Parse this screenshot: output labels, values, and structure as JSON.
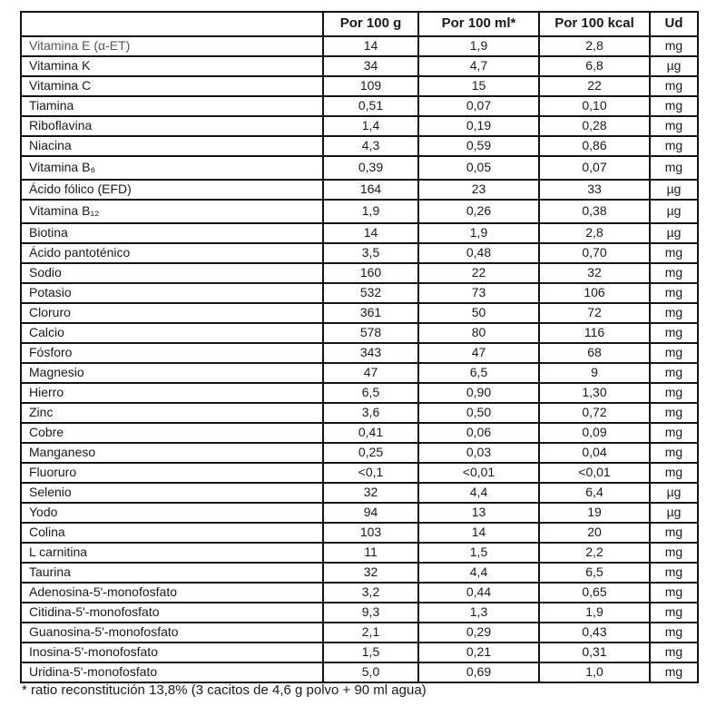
{
  "colors": {
    "background": "#ffffff",
    "text": "#1a1a1a",
    "border": "#141414",
    "faded_row_label": "#565656"
  },
  "table": {
    "columns": [
      "",
      "Por 100 g",
      "Por 100 ml*",
      "Por 100 kcal",
      "Ud"
    ],
    "rows": [
      {
        "label": "Vitamina E (α-ET)",
        "per100g": "14",
        "per100ml": "1,9",
        "per100kcal": "2,8",
        "unit": "mg"
      },
      {
        "label": "Vitamina K",
        "per100g": "34",
        "per100ml": "4,7",
        "per100kcal": "6,8",
        "unit": "µg"
      },
      {
        "label": "Vitamina C",
        "per100g": "109",
        "per100ml": "15",
        "per100kcal": "22",
        "unit": "mg"
      },
      {
        "label": "Tiamina",
        "per100g": "0,51",
        "per100ml": "0,07",
        "per100kcal": "0,10",
        "unit": "mg"
      },
      {
        "label": "Riboflavina",
        "per100g": "1,4",
        "per100ml": "0,19",
        "per100kcal": "0,28",
        "unit": "mg"
      },
      {
        "label": "Niacina",
        "per100g": "4,3",
        "per100ml": "0,59",
        "per100kcal": "0,86",
        "unit": "mg"
      },
      {
        "label": "Vitamina B₆",
        "per100g": "0,39",
        "per100ml": "0,05",
        "per100kcal": "0,07",
        "unit": "mg",
        "tall": true
      },
      {
        "label": "Ácido fólico (EFD)",
        "per100g": "164",
        "per100ml": "23",
        "per100kcal": "33",
        "unit": "µg"
      },
      {
        "label": "Vitamina B₁₂",
        "per100g": "1,9",
        "per100ml": "0,26",
        "per100kcal": "0,38",
        "unit": "µg",
        "tall": true
      },
      {
        "label": "Biotina",
        "per100g": "14",
        "per100ml": "1,9",
        "per100kcal": "2,8",
        "unit": "µg"
      },
      {
        "label": "Ácido pantoténico",
        "per100g": "3,5",
        "per100ml": "0,48",
        "per100kcal": "0,70",
        "unit": "mg"
      },
      {
        "label": "Sodio",
        "per100g": "160",
        "per100ml": "22",
        "per100kcal": "32",
        "unit": "mg"
      },
      {
        "label": "Potasio",
        "per100g": "532",
        "per100ml": "73",
        "per100kcal": "106",
        "unit": "mg"
      },
      {
        "label": "Cloruro",
        "per100g": "361",
        "per100ml": "50",
        "per100kcal": "72",
        "unit": "mg"
      },
      {
        "label": "Calcio",
        "per100g": "578",
        "per100ml": "80",
        "per100kcal": "116",
        "unit": "mg"
      },
      {
        "label": "Fósforo",
        "per100g": "343",
        "per100ml": "47",
        "per100kcal": "68",
        "unit": "mg"
      },
      {
        "label": "Magnesio",
        "per100g": "47",
        "per100ml": "6,5",
        "per100kcal": "9",
        "unit": "mg"
      },
      {
        "label": "Hierro",
        "per100g": "6,5",
        "per100ml": "0,90",
        "per100kcal": "1,30",
        "unit": "mg"
      },
      {
        "label": "Zinc",
        "per100g": "3,6",
        "per100ml": "0,50",
        "per100kcal": "0,72",
        "unit": "mg"
      },
      {
        "label": "Cobre",
        "per100g": "0,41",
        "per100ml": "0,06",
        "per100kcal": "0,09",
        "unit": "mg"
      },
      {
        "label": "Manganeso",
        "per100g": "0,25",
        "per100ml": "0,03",
        "per100kcal": "0,04",
        "unit": "mg"
      },
      {
        "label": "Fluoruro",
        "per100g": "<0,1",
        "per100ml": "<0,01",
        "per100kcal": "<0,01",
        "unit": "mg"
      },
      {
        "label": "Selenio",
        "per100g": "32",
        "per100ml": "4,4",
        "per100kcal": "6,4",
        "unit": "µg"
      },
      {
        "label": "Yodo",
        "per100g": "94",
        "per100ml": "13",
        "per100kcal": "19",
        "unit": "µg"
      },
      {
        "label": "Colina",
        "per100g": "103",
        "per100ml": "14",
        "per100kcal": "20",
        "unit": "mg"
      },
      {
        "label": "L carnitina",
        "per100g": "11",
        "per100ml": "1,5",
        "per100kcal": "2,2",
        "unit": "mg"
      },
      {
        "label": "Taurina",
        "per100g": "32",
        "per100ml": "4,4",
        "per100kcal": "6,5",
        "unit": "mg"
      },
      {
        "label": "Adenosina-5'-monofosfato",
        "per100g": "3,2",
        "per100ml": "0,44",
        "per100kcal": "0,65",
        "unit": "mg"
      },
      {
        "label": "Citidina-5'-monofosfato",
        "per100g": "9,3",
        "per100ml": "1,3",
        "per100kcal": "1,9",
        "unit": "mg"
      },
      {
        "label": "Guanosina-5'-monofosfato",
        "per100g": "2,1",
        "per100ml": "0,29",
        "per100kcal": "0,43",
        "unit": "mg"
      },
      {
        "label": "Inosina-5'-monofosfato",
        "per100g": "1,5",
        "per100ml": "0,21",
        "per100kcal": "0,31",
        "unit": "mg"
      },
      {
        "label": "Uridina-5'-monofosfato",
        "per100g": "5,0",
        "per100ml": "0,69",
        "per100kcal": "1,0",
        "unit": "mg"
      }
    ]
  },
  "footnote": "* ratio reconstitución 13,8% (3 cacitos de 4,6 g polvo + 90 ml agua)"
}
